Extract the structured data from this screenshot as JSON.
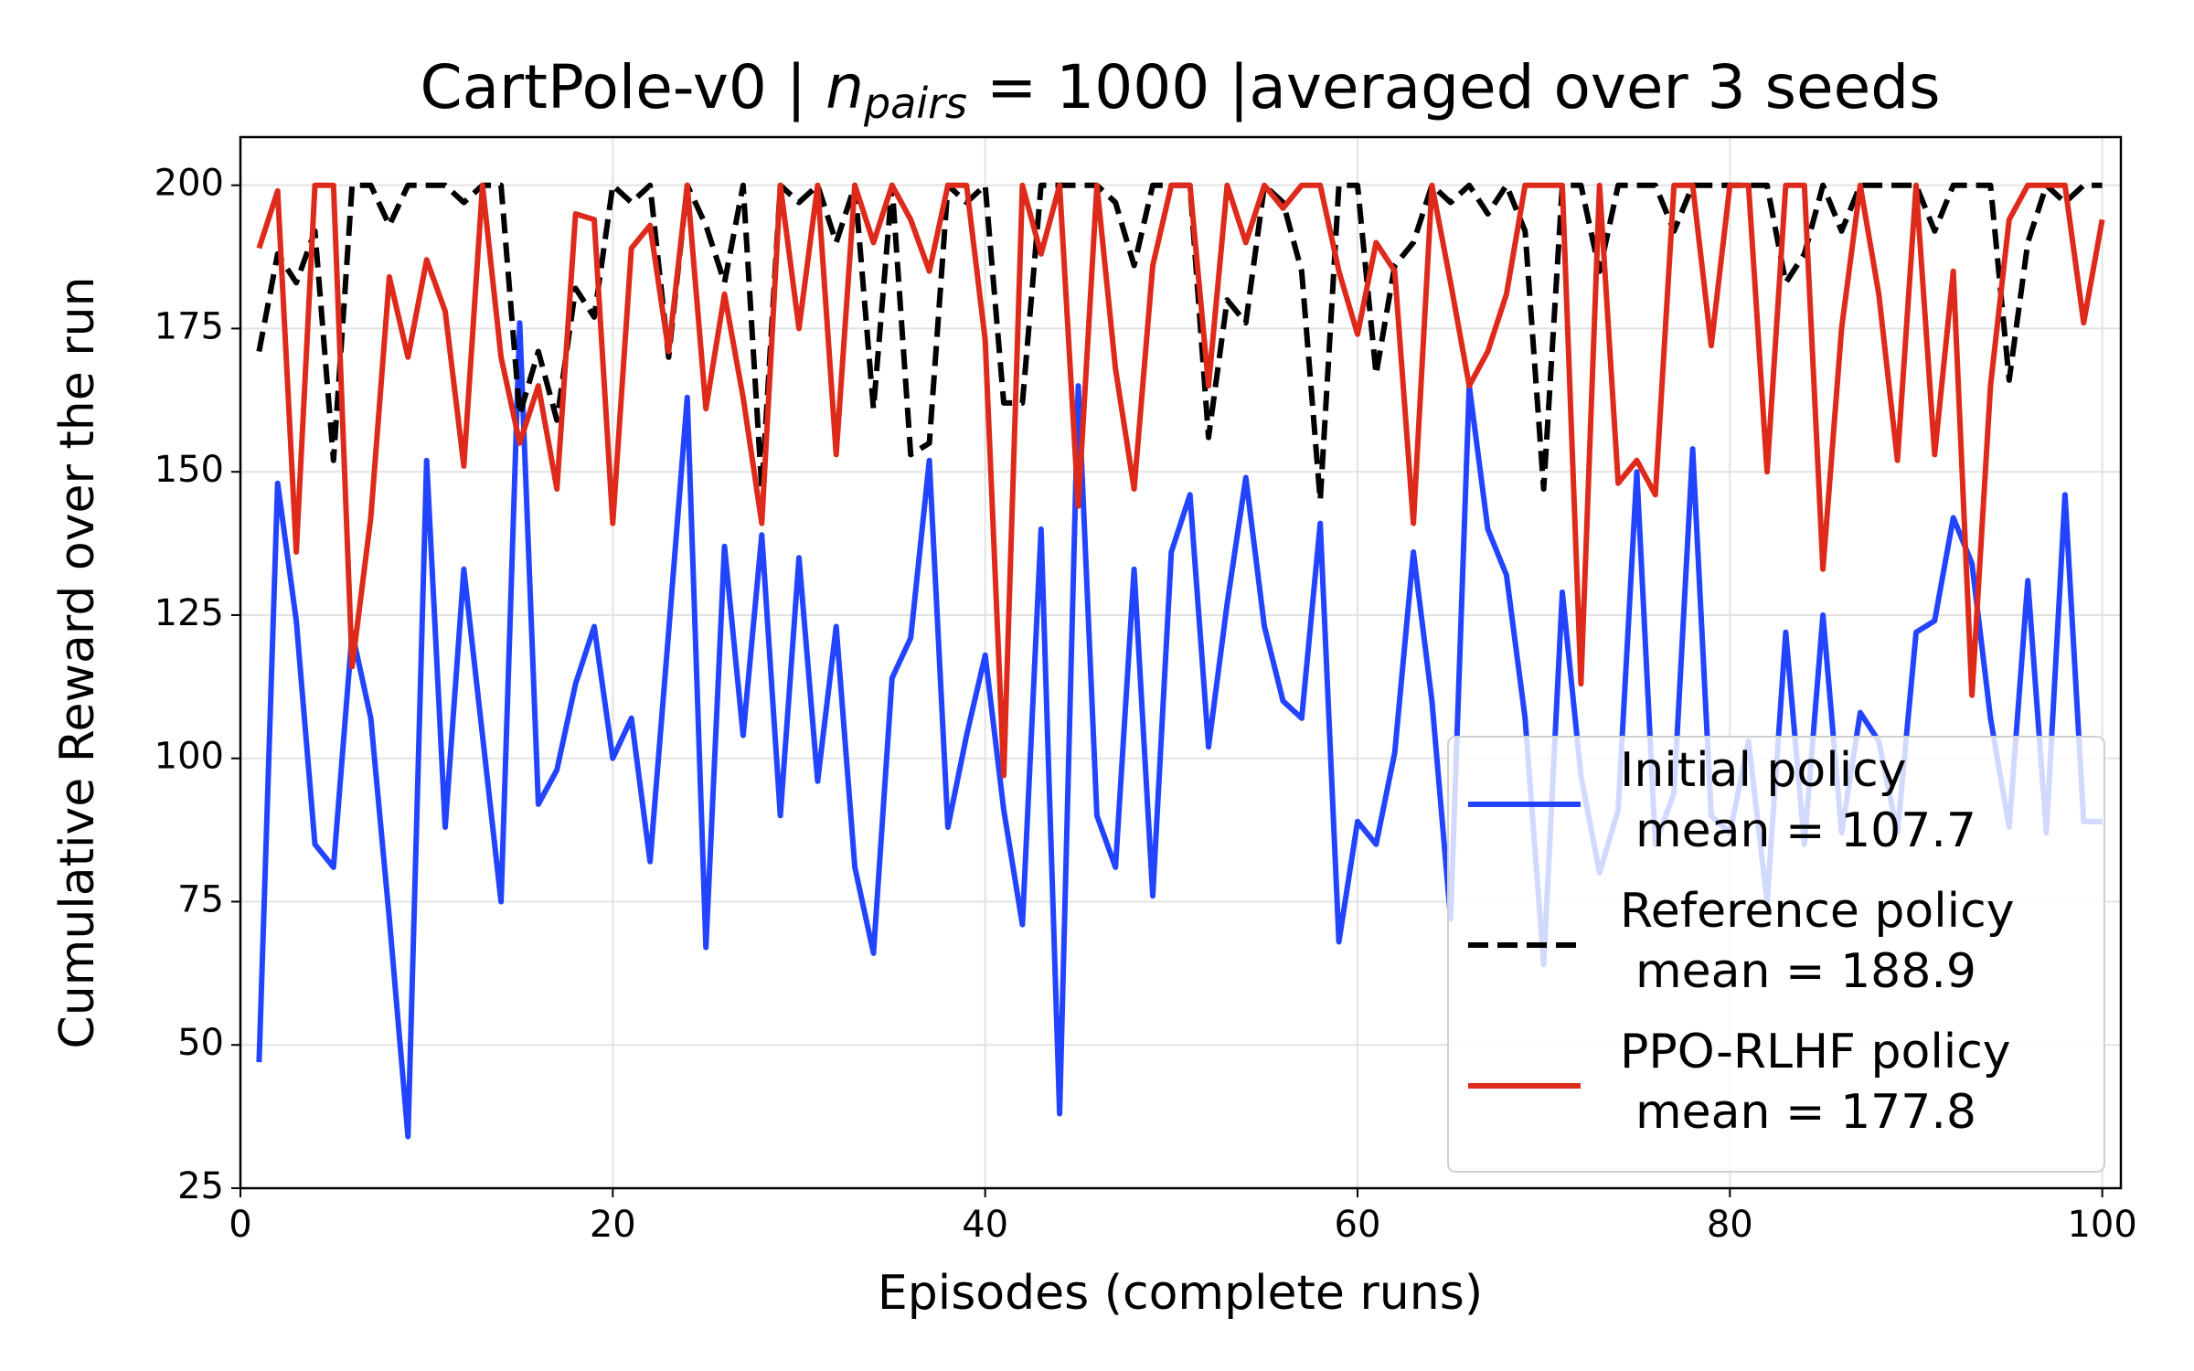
{
  "chart_data": {
    "type": "line",
    "title": {
      "text": "CartPole-v0 | ",
      "symbol": "n",
      "subscript": "pairs",
      "rest": " = 1000 |averaged over 3 seeds"
    },
    "x_label": "Episodes (complete runs)",
    "y_label": "Cumulative Reward over the run",
    "x": [
      1,
      2,
      3,
      4,
      5,
      6,
      7,
      8,
      9,
      10,
      11,
      12,
      13,
      14,
      15,
      16,
      17,
      18,
      19,
      20,
      21,
      22,
      23,
      24,
      25,
      26,
      27,
      28,
      29,
      30,
      31,
      32,
      33,
      34,
      35,
      36,
      37,
      38,
      39,
      40,
      41,
      42,
      43,
      44,
      45,
      46,
      47,
      48,
      49,
      50,
      51,
      52,
      53,
      54,
      55,
      56,
      57,
      58,
      59,
      60,
      61,
      62,
      63,
      64,
      65,
      66,
      67,
      68,
      69,
      70,
      71,
      72,
      73,
      74,
      75,
      76,
      77,
      78,
      79,
      80,
      81,
      82,
      83,
      84,
      85,
      86,
      87,
      88,
      89,
      90,
      91,
      92,
      93,
      94,
      95,
      96,
      97,
      98,
      99,
      100
    ],
    "xlim": [
      0,
      101
    ],
    "xticks": [
      0,
      20,
      40,
      60,
      80,
      100
    ],
    "ylim": [
      25,
      208.4
    ],
    "yticks": [
      25,
      50,
      75,
      100,
      125,
      150,
      175,
      200
    ],
    "grid": true,
    "legend_position": "lower right",
    "series": [
      {
        "name": "Initial policy",
        "mean_label": "mean = 107.7",
        "color": "#2244ff",
        "dashed": false,
        "values": [
          47,
          148,
          124,
          85,
          81,
          122,
          107,
          72,
          34,
          152,
          88,
          133,
          104,
          75,
          176,
          92,
          98,
          113,
          123,
          100,
          107,
          82,
          122,
          163,
          67,
          137,
          104,
          139,
          90,
          135,
          96,
          123,
          81,
          66,
          114,
          121,
          152,
          88,
          104,
          118,
          91,
          71,
          140,
          38,
          165,
          90,
          81,
          133,
          76,
          136,
          146,
          102,
          127,
          149,
          123,
          110,
          107,
          141,
          68,
          89,
          85,
          101,
          136,
          110,
          72,
          165,
          140,
          132,
          107,
          64,
          129,
          97,
          80,
          91,
          150,
          85,
          94,
          154,
          90,
          87,
          103,
          75,
          122,
          85,
          125,
          87,
          108,
          103,
          87,
          122,
          124,
          142,
          134,
          107,
          88,
          131,
          87,
          146,
          89,
          89
        ]
      },
      {
        "name": "Reference policy",
        "mean_label": "mean = 188.9",
        "color": "#000000",
        "dashed": true,
        "values": [
          171,
          188,
          183,
          192,
          152,
          200,
          200,
          193,
          200,
          200,
          200,
          197,
          200,
          200,
          160,
          171,
          159,
          182,
          177,
          200,
          197,
          200,
          170,
          200,
          193,
          183,
          200,
          147,
          200,
          197,
          200,
          190,
          200,
          161,
          200,
          153,
          155,
          200,
          197,
          200,
          162,
          162,
          200,
          200,
          200,
          200,
          197,
          186,
          200,
          200,
          200,
          156,
          180,
          176,
          200,
          197,
          185,
          145,
          200,
          200,
          167,
          186,
          190,
          200,
          197,
          200,
          195,
          200,
          192,
          147,
          200,
          200,
          185,
          200,
          200,
          200,
          192,
          200,
          200,
          200,
          200,
          200,
          183,
          188,
          200,
          192,
          200,
          200,
          200,
          200,
          192,
          200,
          200,
          200,
          166,
          190,
          200,
          197,
          200,
          200
        ]
      },
      {
        "name": "PPO-RLHF policy",
        "mean_label": "mean = 177.8",
        "color": "#dd2a1b",
        "dashed": false,
        "values": [
          189,
          199,
          136,
          200,
          200,
          116,
          142,
          184,
          170,
          187,
          178,
          151,
          200,
          170,
          155,
          165,
          147,
          195,
          194,
          141,
          189,
          193,
          171,
          200,
          161,
          181,
          163,
          141,
          200,
          175,
          200,
          153,
          200,
          190,
          200,
          194,
          185,
          200,
          200,
          173,
          97,
          200,
          188,
          200,
          144,
          200,
          168,
          147,
          186,
          200,
          200,
          165,
          200,
          190,
          200,
          196,
          200,
          200,
          185,
          174,
          190,
          185,
          141,
          200,
          183,
          165,
          171,
          181,
          200,
          200,
          200,
          113,
          200,
          148,
          152,
          146,
          200,
          200,
          172,
          200,
          200,
          150,
          200,
          200,
          133,
          175,
          200,
          181,
          152,
          200,
          153,
          185,
          111,
          165,
          194,
          200,
          200,
          200,
          176,
          194
        ]
      }
    ]
  }
}
